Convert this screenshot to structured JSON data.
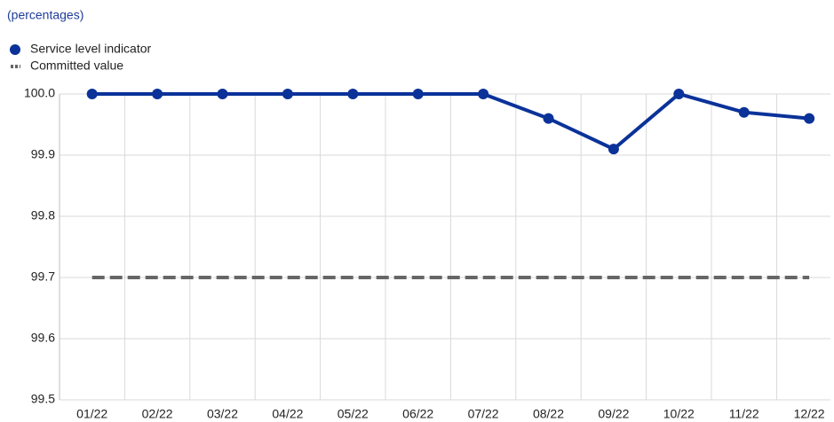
{
  "chart_data": {
    "type": "line",
    "subtitle": "(percentages)",
    "categories": [
      "01/22",
      "02/22",
      "03/22",
      "04/22",
      "05/22",
      "06/22",
      "07/22",
      "08/22",
      "09/22",
      "10/22",
      "11/22",
      "12/22"
    ],
    "series": [
      {
        "name": "Service level indicator",
        "color": "#0a3299",
        "markers": true,
        "dashed": false,
        "values": [
          100,
          100,
          100,
          100,
          100,
          100,
          100,
          99.96,
          99.91,
          100,
          99.97,
          99.96
        ]
      },
      {
        "name": "Committed value",
        "color": "#666666",
        "markers": false,
        "dashed": true,
        "values": [
          99.7,
          99.7,
          99.7,
          99.7,
          99.7,
          99.7,
          99.7,
          99.7,
          99.7,
          99.7,
          99.7,
          99.7
        ]
      }
    ],
    "ylim": [
      99.5,
      100
    ],
    "yticks": [
      99.5,
      99.6,
      99.7,
      99.8,
      99.9,
      {
        "value": 100,
        "label": "100.0"
      }
    ],
    "grid": true
  }
}
